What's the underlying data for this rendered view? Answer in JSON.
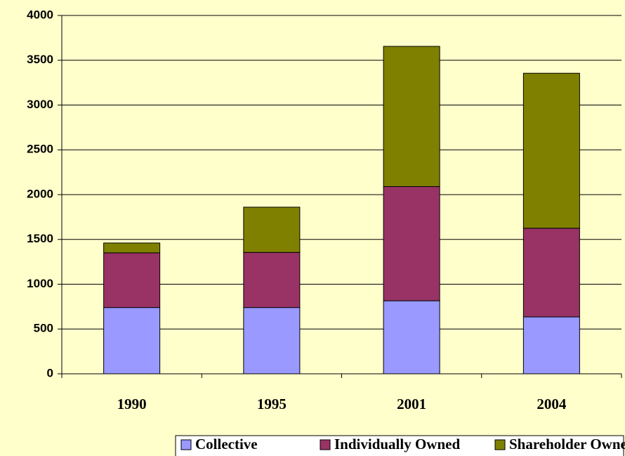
{
  "chart_data": {
    "type": "stacked_bar",
    "categories": [
      "1990",
      "1995",
      "2001",
      "2004"
    ],
    "series": [
      {
        "name": "Collective",
        "color": "#9999ff",
        "values": [
          740,
          740,
          815,
          635
        ]
      },
      {
        "name": "Individually Owned",
        "color": "#993366",
        "values": [
          610,
          615,
          1275,
          990
        ]
      },
      {
        "name": "Shareholder Owned",
        "color": "#808000",
        "values": [
          110,
          505,
          1565,
          1730
        ]
      }
    ],
    "ylim": [
      0,
      4000
    ],
    "yticks": [
      0,
      500,
      1000,
      1500,
      2000,
      2500,
      3000,
      3500,
      4000
    ],
    "grid": true,
    "legend": "bottom"
  }
}
